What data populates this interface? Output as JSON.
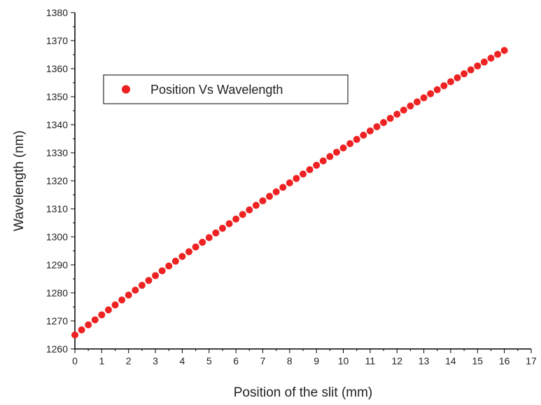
{
  "chart_data": {
    "type": "scatter",
    "title": "",
    "xlabel": "Position of the slit (mm)",
    "ylabel": "Wavelength (nm)",
    "xlim": [
      0,
      17
    ],
    "ylim": [
      1260,
      1380
    ],
    "xticks": [
      "0",
      "1",
      "2",
      "3",
      "4",
      "5",
      "6",
      "7",
      "8",
      "9",
      "10",
      "11",
      "12",
      "13",
      "14",
      "15",
      "16",
      "17"
    ],
    "yticks": [
      "1260",
      "1270",
      "1280",
      "1290",
      "1300",
      "1310",
      "1320",
      "1330",
      "1340",
      "1350",
      "1360",
      "1370",
      "1380"
    ],
    "grid": false,
    "legend_position": "upper-left",
    "marker_color": "#ee2222",
    "series": [
      {
        "name": "Position Vs Wavelength",
        "x_start": 0,
        "x_end": 16,
        "x_step": 0.25,
        "y_start": 1265,
        "y_end": 1366.5,
        "curvature": 3.5
      }
    ]
  }
}
